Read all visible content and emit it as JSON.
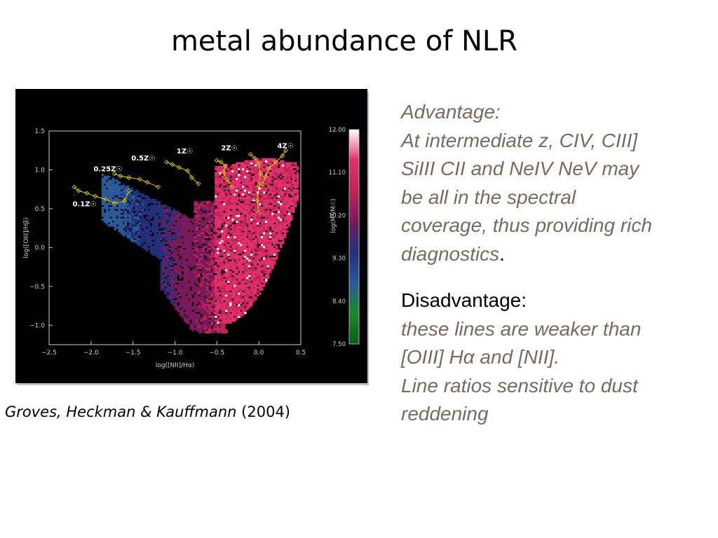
{
  "slide": {
    "title": "metal abundance of NLR",
    "citation_authors": "Groves, Heckman & Kauffmann",
    "citation_year": "(2004)",
    "advantage_heading": "Advantage:",
    "advantage_lines": [
      "At intermediate z, CIV, CIII]",
      "SiIII CII and NeIV NeV  may",
      "be all in the spectral",
      "coverage, thus providing rich",
      "diagnostics"
    ],
    "advantage_end": ".",
    "disadvantage_heading": "Disadvantage:",
    "disadvantage_lines": [
      "these lines are weaker than",
      "[OIII] Hα and [NII].",
      "Line ratios sensitive to dust",
      "reddening"
    ]
  },
  "colors": {
    "text_brown": "#7a6a5e",
    "track_yellow": "#e6d400",
    "colorbar": [
      "#0c5a18",
      "#1a8a2a",
      "#2a5a9a",
      "#22307a",
      "#7a1a5a",
      "#c0245a",
      "#e0306e",
      "#ffffff"
    ]
  },
  "chart_data": {
    "type": "scatter",
    "xlabel": "log([NII]/Hα)",
    "ylabel": "log([OIII]/Hβ)",
    "xlim": [
      -2.5,
      0.5
    ],
    "ylim": [
      -1.25,
      1.5
    ],
    "x_ticks": [
      "−2.5",
      "−2.0",
      "−1.5",
      "−1.0",
      "−0.5",
      "0.0",
      "0.5"
    ],
    "y_ticks": [
      "1.5",
      "1.0",
      "0.5",
      "0.0",
      "−0.5",
      "−1.0"
    ],
    "colorbar": {
      "label": "log(M*/M☉)",
      "ticks": [
        "12.00",
        "11.10",
        "10.20",
        "9.30",
        "8.40",
        "7.50"
      ],
      "range": [
        7.5,
        12.0
      ]
    },
    "metallicity_labels": [
      {
        "text": "0.1Z☉",
        "x": -2.22,
        "y": 0.53
      },
      {
        "text": "0.25Z☉",
        "x": -1.97,
        "y": 0.98
      },
      {
        "text": "0.5Z☉",
        "x": -1.52,
        "y": 1.12
      },
      {
        "text": "1Z☉",
        "x": -0.98,
        "y": 1.21
      },
      {
        "text": "2Z☉",
        "x": -0.45,
        "y": 1.25
      },
      {
        "text": "4Z☉",
        "x": 0.22,
        "y": 1.28
      }
    ],
    "model_tracks": [
      {
        "metallicity": "0.1Z☉",
        "points": [
          [
            -2.2,
            0.78
          ],
          [
            -2.15,
            0.73
          ],
          [
            -2.05,
            0.7
          ],
          [
            -1.95,
            0.66
          ],
          [
            -1.82,
            0.62
          ],
          [
            -1.72,
            0.57
          ],
          [
            -1.6,
            0.6
          ],
          [
            -1.55,
            0.73
          ]
        ]
      },
      {
        "metallicity": "0.25Z☉",
        "points": [
          [
            -1.72,
            0.95
          ],
          [
            -1.65,
            0.92
          ],
          [
            -1.55,
            0.9
          ],
          [
            -1.42,
            0.88
          ],
          [
            -1.33,
            0.84
          ],
          [
            -1.2,
            0.78
          ]
        ]
      },
      {
        "metallicity": "0.5Z☉",
        "points": [
          [
            -1.1,
            1.1
          ],
          [
            -1.03,
            1.07
          ],
          [
            -0.95,
            1.03
          ],
          [
            -0.85,
            0.99
          ],
          [
            -0.8,
            0.9
          ],
          [
            -0.72,
            0.82
          ]
        ]
      },
      {
        "metallicity": "1Z☉",
        "points": [
          [
            -0.5,
            1.12
          ],
          [
            -0.45,
            1.1
          ],
          [
            -0.4,
            1.05
          ],
          [
            -0.42,
            0.97
          ],
          [
            -0.38,
            0.88
          ],
          [
            -0.32,
            0.78
          ]
        ]
      },
      {
        "metallicity": "2Z☉",
        "points": [
          [
            -0.1,
            1.2
          ],
          [
            -0.05,
            1.15
          ],
          [
            0.0,
            1.08
          ],
          [
            0.02,
            0.95
          ],
          [
            0.0,
            0.8
          ],
          [
            -0.02,
            0.6
          ],
          [
            0.0,
            0.45
          ]
        ]
      },
      {
        "metallicity": "4Z☉",
        "points": [
          [
            0.32,
            1.25
          ],
          [
            0.28,
            1.18
          ],
          [
            0.2,
            1.1
          ],
          [
            0.12,
            1.02
          ],
          [
            0.08,
            0.92
          ],
          [
            0.05,
            0.82
          ]
        ]
      }
    ],
    "density_region": "AGN/star-forming galaxy sequence colored by stellar mass"
  }
}
